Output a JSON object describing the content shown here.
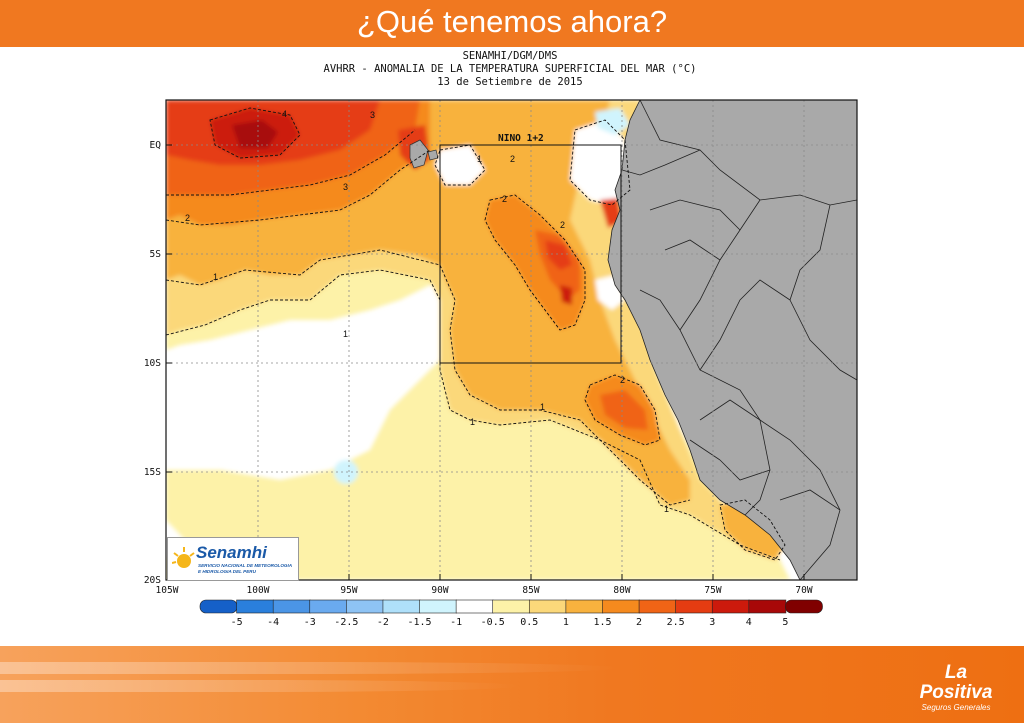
{
  "slide": {
    "title": "¿Qué tenemos ahora?"
  },
  "map_header": {
    "line1": "SENAMHI/DGM/DMS",
    "line2": "AVHRR - ANOMALIA DE LA TEMPERATURA SUPERFICIAL DEL MAR (°C)",
    "line3": "13 de Setiembre de 2015"
  },
  "map": {
    "lat_labels": [
      "EQ",
      "5S",
      "10S",
      "15S",
      "20S"
    ],
    "lon_labels": [
      "105W",
      "100W",
      "95W",
      "90W",
      "85W",
      "80W",
      "75W",
      "70W"
    ],
    "lat_extent": [
      0.8,
      -20
    ],
    "lon_extent": [
      -105,
      -68
    ],
    "region_label": "NINO 1+2",
    "region_box": {
      "lon": [
        -90,
        -80
      ],
      "lat": [
        0,
        -10
      ]
    },
    "contour_labels": [
      "1",
      "2",
      "3",
      "4"
    ],
    "land_color": "#a9a9a9",
    "grid": true
  },
  "colorbar": {
    "labels": [
      "-5",
      "-4",
      "-3",
      "-2.5",
      "-2",
      "-1.5",
      "-1",
      "-0.5",
      "0.5",
      "1",
      "1.5",
      "2",
      "2.5",
      "3",
      "4",
      "5"
    ],
    "colors": [
      "#1560c8",
      "#2a7fdc",
      "#4b95e6",
      "#6aaaef",
      "#8ec3f4",
      "#afe0fa",
      "#d0f4fd",
      "#ffffff",
      "#fdf2a8",
      "#fbd87a",
      "#f8b23e",
      "#f58a1e",
      "#f06416",
      "#e53c12",
      "#cc1a0c",
      "#a80808",
      "#800000"
    ]
  },
  "senamhi_logo": {
    "name": "Senamhi",
    "subtitle": "SERVICIO NACIONAL DE METEOROLOGIA E HIDROLOGIA DEL PERU"
  },
  "brand": {
    "name": "La Positiva",
    "subtitle": "Seguros Generales"
  }
}
